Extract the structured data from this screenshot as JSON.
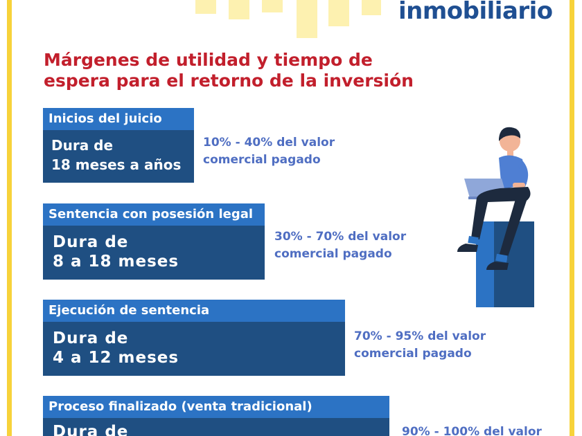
{
  "brand": {
    "title": "inmobiliario"
  },
  "headline": {
    "line1": "Márgenes de utilidad y tiempo de",
    "line2": "espera para el retorno de la inversión"
  },
  "stages": [
    {
      "title": "Inicios del juicio",
      "duration_line1": "Dura de",
      "duration_line2": "18 meses a años",
      "note_line1": "10% - 40% del valor",
      "note_line2": "comercial pagado"
    },
    {
      "title": "Sentencia con posesión legal",
      "duration_line1": "Dura de",
      "duration_line2": "8 a 18 meses",
      "note_line1": "30% - 70% del valor",
      "note_line2": "comercial pagado"
    },
    {
      "title": "Ejecución de sentencia",
      "duration_line1": "Dura de",
      "duration_line2": "4 a 12 meses",
      "note_line1": "70% - 95% del valor",
      "note_line2": "comercial pagado"
    },
    {
      "title": "Proceso finalizado (venta tradicional)",
      "duration_line1": "Dura de",
      "note_line1": "90% - 100% del valor"
    }
  ],
  "colors": {
    "frame_yellow": "#f7d23a",
    "headline_red": "#c21f2c",
    "stage_header_blue": "#2c73c4",
    "stage_body_navy": "#1f4f82",
    "note_blue": "#4f6ec2"
  },
  "illustration": "person-with-laptop-on-pedestal"
}
